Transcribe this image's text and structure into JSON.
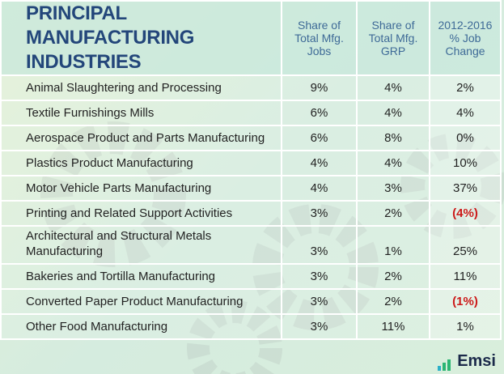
{
  "header": {
    "title": "PRINCIPAL MANUFACTURING INDUSTRIES"
  },
  "table": {
    "columns": [
      "Share of Total Mfg. Jobs",
      "Share of Total Mfg. GRP",
      "2012-2016 % Job Change"
    ],
    "rows": [
      [
        "Animal Slaughtering and Processing",
        "9%",
        "4%",
        "2%"
      ],
      [
        "Textile Furnishings Mills",
        "6%",
        "4%",
        "4%"
      ],
      [
        "Aerospace Product and Parts Manufacturing",
        "6%",
        "8%",
        "0%"
      ],
      [
        "Plastics Product Manufacturing",
        "4%",
        "4%",
        "10%"
      ],
      [
        "Motor Vehicle Parts Manufacturing",
        "4%",
        "3%",
        "37%"
      ],
      [
        "Printing and Related Support Activities",
        "3%",
        "2%",
        "(4%)"
      ],
      [
        "Architectural and Structural Metals Manufacturing",
        "3%",
        "1%",
        "25%"
      ],
      [
        "Bakeries and Tortilla Manufacturing",
        "3%",
        "2%",
        "11%"
      ],
      [
        "Converted Paper Product Manufacturing",
        "3%",
        "2%",
        "(1%)"
      ],
      [
        "Other Food Manufacturing",
        "3%",
        "11%",
        "1%"
      ]
    ]
  },
  "footer": {
    "logo": "Emsi"
  }
}
